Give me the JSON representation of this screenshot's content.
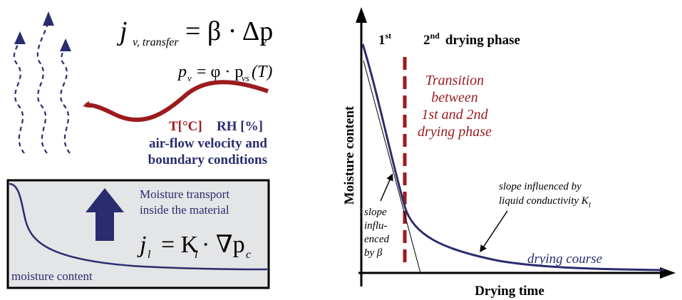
{
  "left_panel": {
    "formula_transfer": {
      "lhs_main": "j",
      "lhs_sub": "v, transfer",
      "rhs": "= β · Δp",
      "rhs_sub": "v"
    },
    "formula_vapor": {
      "lhs_main": "p",
      "lhs_sub": "v",
      "mid": "= φ · p",
      "mid_sub": "vs",
      "tail": "(T)"
    },
    "climate_label_temp": "T[°C]",
    "climate_label_rh": "RH [%]",
    "airflow_line1": "air-flow velocity and",
    "airflow_line2": "boundary conditions",
    "material_box": {
      "transport_line1": "Moisture transport",
      "transport_line2": "inside the material",
      "formula_main": "j",
      "formula_sub_l": "l",
      "formula_mid": "= K",
      "formula_sub_l2": "l",
      "formula_tail": "· ∇p",
      "formula_sub_c": "c",
      "moisture_label": "moisture content"
    }
  },
  "chart": {
    "ylabel": "Moisture content",
    "xlabel": "Drying time",
    "phase1_main": "1",
    "phase1_sup": "st",
    "phase2_main": "2",
    "phase2_sup": "nd",
    "phase2_rest": "drying phase",
    "transition_lines": [
      "Transition",
      "between",
      "1st and 2nd",
      "drying phase"
    ],
    "slope_beta_lines": [
      "slope",
      "influ-",
      "enced",
      "by β"
    ],
    "slope_k_line1": "slope influenced by",
    "slope_k_line2_main": "liquid conductivity K",
    "slope_k_line2_sub": "l",
    "curve_label": "drying course"
  },
  "colors": {
    "navy": "#2b2c6e",
    "red": "#9b1b1f",
    "box_fill": "#e4e5e7"
  }
}
